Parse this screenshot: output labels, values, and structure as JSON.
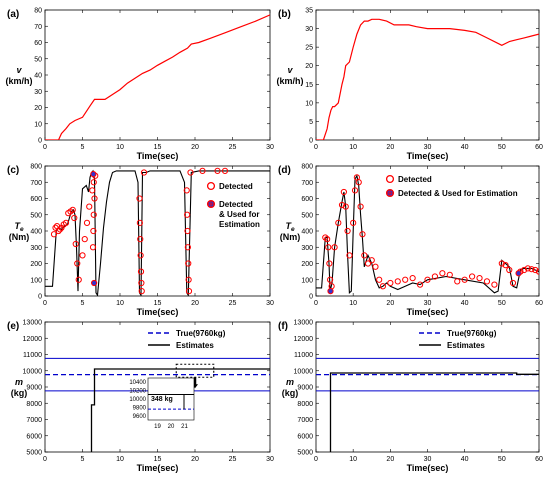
{
  "chart_data": [
    {
      "id": "a",
      "panel_label": "(a)",
      "type": "line",
      "ylabel_main": "v",
      "ylabel_unit": "(km/h)",
      "xlabel": "Time(sec)",
      "xlim": [
        0,
        30
      ],
      "ylim": [
        0,
        80
      ],
      "xticks": [
        0,
        5,
        10,
        15,
        20,
        25,
        30
      ],
      "yticks": [
        0,
        10,
        20,
        30,
        40,
        50,
        60,
        70,
        80
      ],
      "series": [
        {
          "color": "#ff0000",
          "x": [
            0,
            1.8,
            2.2,
            2.8,
            3.3,
            4.0,
            5.0,
            6.0,
            6.6,
            7.5,
            8.0,
            9.0,
            10.0,
            11.0,
            12.0,
            13.0,
            14.0,
            15.0,
            16.0,
            17.0,
            18.0,
            19.0,
            19.5,
            20.5,
            22.0,
            24.0,
            26.0,
            28.0,
            30.0
          ],
          "y": [
            0,
            0,
            4,
            7,
            10,
            12,
            14,
            21,
            25,
            25,
            25,
            28,
            31,
            35,
            38,
            41,
            43,
            46,
            48.5,
            51,
            54,
            56.5,
            59,
            60,
            62.5,
            66,
            69.5,
            73,
            77
          ]
        }
      ]
    },
    {
      "id": "b",
      "panel_label": "(b)",
      "type": "line",
      "ylabel_main": "v",
      "ylabel_unit": "(km/h)",
      "xlabel": "Time(sec)",
      "xlim": [
        0,
        60
      ],
      "ylim": [
        0,
        35
      ],
      "xticks": [
        0,
        10,
        20,
        30,
        40,
        50,
        60
      ],
      "yticks": [
        0,
        5,
        10,
        15,
        20,
        25,
        30,
        35
      ],
      "series": [
        {
          "color": "#ff0000",
          "x": [
            0,
            2,
            3,
            3.5,
            4,
            4.5,
            5,
            6,
            7,
            7.5,
            8,
            9,
            10,
            11,
            12,
            13,
            14,
            15,
            17,
            19,
            21,
            23,
            25,
            27,
            30,
            33,
            36,
            40,
            43,
            46,
            49,
            50,
            52,
            54,
            56,
            58,
            60
          ],
          "y": [
            0,
            0,
            3,
            6,
            8,
            9,
            9,
            10,
            15,
            17,
            20,
            21,
            25,
            28.5,
            31,
            32,
            32,
            32.5,
            32.5,
            32,
            31,
            31,
            31,
            30.5,
            30,
            30,
            30,
            29.5,
            29,
            27.5,
            26,
            25.5,
            26.5,
            27,
            27.5,
            28,
            28.5
          ]
        }
      ]
    },
    {
      "id": "c",
      "panel_label": "(c)",
      "type": "line",
      "ylabel_main": "Te",
      "ylabel_unit": "(Nm)",
      "xlabel": "Time(sec)",
      "xlim": [
        0,
        30
      ],
      "ylim": [
        0,
        800
      ],
      "xticks": [
        0,
        5,
        10,
        15,
        20,
        25,
        30
      ],
      "yticks": [
        0,
        100,
        200,
        300,
        400,
        500,
        600,
        700,
        800
      ],
      "legend": [
        "Detected",
        "Detected & Used for Estimation"
      ],
      "series": [
        {
          "color": "#000000",
          "x": [
            0,
            1.0,
            1.5,
            1.8,
            2.2,
            2.6,
            3.0,
            3.5,
            3.8,
            4.0,
            4.2,
            4.4,
            4.6,
            5.0,
            5.5,
            5.8,
            6.0,
            6.2,
            6.4,
            6.6,
            6.8,
            7.0,
            7.4,
            7.8,
            8.2,
            8.6,
            9.0,
            9.5,
            10.0,
            10.5,
            11.0,
            11.5,
            12.0,
            12.4,
            12.6,
            12.8,
            13.0,
            13.5,
            14.0,
            16.0,
            18.0,
            18.6,
            18.9,
            19.1,
            19.5,
            20.5,
            22.0,
            25.0,
            28.0,
            30.0
          ],
          "y": [
            60,
            60,
            400,
            420,
            410,
            430,
            440,
            520,
            530,
            500,
            300,
            30,
            400,
            660,
            680,
            640,
            730,
            760,
            770,
            720,
            20,
            5,
            200,
            420,
            580,
            700,
            760,
            770,
            770,
            770,
            770,
            770,
            770,
            700,
            20,
            5,
            760,
            760,
            770,
            770,
            770,
            700,
            20,
            5,
            760,
            770,
            770,
            770,
            770,
            770
          ]
        }
      ],
      "detected": [
        {
          "x": [
            1.2,
            1.4,
            1.6,
            1.8,
            2.0,
            2.2,
            2.5,
            2.8,
            3.1,
            3.4,
            3.7,
            3.9,
            4.1,
            4.3,
            4.5,
            5.0,
            5.3,
            5.6,
            5.9,
            6.3,
            6.5,
            6.7,
            6.6,
            6.5,
            6.45,
            6.4,
            12.6,
            12.65,
            12.7,
            12.75,
            12.8,
            12.85,
            12.9,
            13.2,
            18.9,
            18.95,
            19.0,
            19.05,
            19.1,
            19.15,
            19.2,
            19.4,
            21,
            23,
            24
          ],
          "y": [
            380,
            420,
            430,
            400,
            410,
            420,
            440,
            450,
            510,
            520,
            530,
            480,
            320,
            200,
            100,
            250,
            350,
            450,
            550,
            650,
            700,
            740,
            600,
            500,
            400,
            300,
            600,
            450,
            350,
            250,
            150,
            80,
            30,
            760,
            650,
            500,
            400,
            300,
            200,
            100,
            30,
            760,
            770,
            770,
            770
          ]
        }
      ],
      "used": {
        "x": [
          6.45,
          6.55
        ],
        "y": [
          750,
          80
        ]
      }
    },
    {
      "id": "d",
      "panel_label": "(d)",
      "type": "line",
      "ylabel_main": "Te",
      "ylabel_unit": "(Nm)",
      "xlabel": "Time(sec)",
      "xlim": [
        0,
        60
      ],
      "ylim": [
        0,
        800
      ],
      "xticks": [
        0,
        10,
        20,
        30,
        40,
        50,
        60
      ],
      "yticks": [
        0,
        100,
        200,
        300,
        400,
        500,
        600,
        700,
        800
      ],
      "legend": [
        "Detected",
        "Detected & Used for Estimation"
      ],
      "series": [
        {
          "color": "#000000",
          "x": [
            0,
            1.5,
            2.5,
            3.0,
            3.5,
            3.8,
            4.0,
            4.3,
            5.0,
            6.0,
            7.0,
            7.5,
            8.0,
            8.5,
            9.0,
            9.5,
            10.0,
            10.5,
            11.0,
            11.5,
            12.0,
            12.5,
            13.0,
            14,
            15,
            16,
            17,
            18,
            19,
            20,
            22,
            24,
            26,
            28,
            30,
            35,
            40,
            45,
            48,
            49,
            50,
            51,
            52,
            53,
            54,
            55,
            56,
            58,
            60
          ],
          "y": [
            50,
            50,
            360,
            360,
            200,
            30,
            50,
            80,
            300,
            450,
            580,
            640,
            550,
            250,
            20,
            30,
            400,
            720,
            740,
            680,
            500,
            350,
            180,
            250,
            200,
            100,
            50,
            60,
            80,
            60,
            40,
            60,
            80,
            70,
            100,
            120,
            100,
            80,
            20,
            30,
            220,
            200,
            180,
            60,
            50,
            160,
            170,
            170,
            150
          ]
        }
      ],
      "detected": [
        {
          "x": [
            2.5,
            3.0,
            3.3,
            3.6,
            3.8,
            4.2,
            5,
            6,
            7,
            7.5,
            8,
            8.5,
            9,
            10,
            10.5,
            11,
            11.5,
            12,
            12.5,
            13,
            14,
            15,
            16,
            17,
            18,
            20,
            22,
            24,
            26,
            28,
            30,
            32,
            34,
            36,
            38,
            40,
            42,
            44,
            46,
            48,
            50,
            51,
            52,
            53,
            55,
            56,
            57,
            58,
            59,
            60
          ],
          "y": [
            360,
            350,
            300,
            200,
            100,
            60,
            300,
            450,
            560,
            640,
            550,
            400,
            250,
            450,
            650,
            730,
            700,
            550,
            380,
            250,
            200,
            220,
            180,
            100,
            60,
            80,
            90,
            100,
            110,
            70,
            100,
            120,
            140,
            130,
            90,
            100,
            120,
            110,
            90,
            70,
            200,
            190,
            160,
            80,
            150,
            160,
            170,
            165,
            160,
            150
          ]
        }
      ],
      "used": {
        "x": [
          3.9,
          54.5
        ],
        "y": [
          30,
          140
        ]
      }
    },
    {
      "id": "e",
      "panel_label": "(e)",
      "type": "line",
      "ylabel_main": "m",
      "ylabel_unit": "(kg)",
      "xlabel": "Time(sec)",
      "xlim": [
        0,
        30
      ],
      "ylim": [
        5000,
        13000
      ],
      "xticks": [
        0,
        5,
        10,
        15,
        20,
        25,
        30
      ],
      "yticks": [
        5000,
        6000,
        7000,
        8000,
        9000,
        10000,
        11000,
        12000,
        13000
      ],
      "legend": [
        "True(9760kg)",
        "Estimates"
      ],
      "true_mass": 9760,
      "bounds": [
        10760,
        8760
      ],
      "estimates": {
        "x": [
          6.2,
          6.2,
          6.6,
          6.6,
          30
        ],
        "y": [
          5000,
          7900,
          7900,
          10108,
          10108
        ]
      },
      "inset": {
        "xticks": [
          19,
          20,
          21
        ],
        "yticks": [
          9600,
          9800,
          10000,
          10200,
          10400
        ],
        "annotation": "348 kg"
      }
    },
    {
      "id": "f",
      "panel_label": "(f)",
      "type": "line",
      "ylabel_main": "m",
      "ylabel_unit": "(kg)",
      "xlabel": "Time(sec)",
      "xlim": [
        0,
        60
      ],
      "ylim": [
        5000,
        13000
      ],
      "xticks": [
        0,
        10,
        20,
        30,
        40,
        50,
        60
      ],
      "yticks": [
        5000,
        6000,
        7000,
        8000,
        9000,
        10000,
        11000,
        12000,
        13000
      ],
      "legend": [
        "True(9760kg)",
        "Estimates"
      ],
      "true_mass": 9760,
      "bounds": [
        10760,
        8760
      ],
      "estimates": {
        "x": [
          3.9,
          3.9,
          54,
          54,
          60
        ],
        "y": [
          5000,
          9860,
          9860,
          9780,
          9780
        ]
      }
    }
  ]
}
